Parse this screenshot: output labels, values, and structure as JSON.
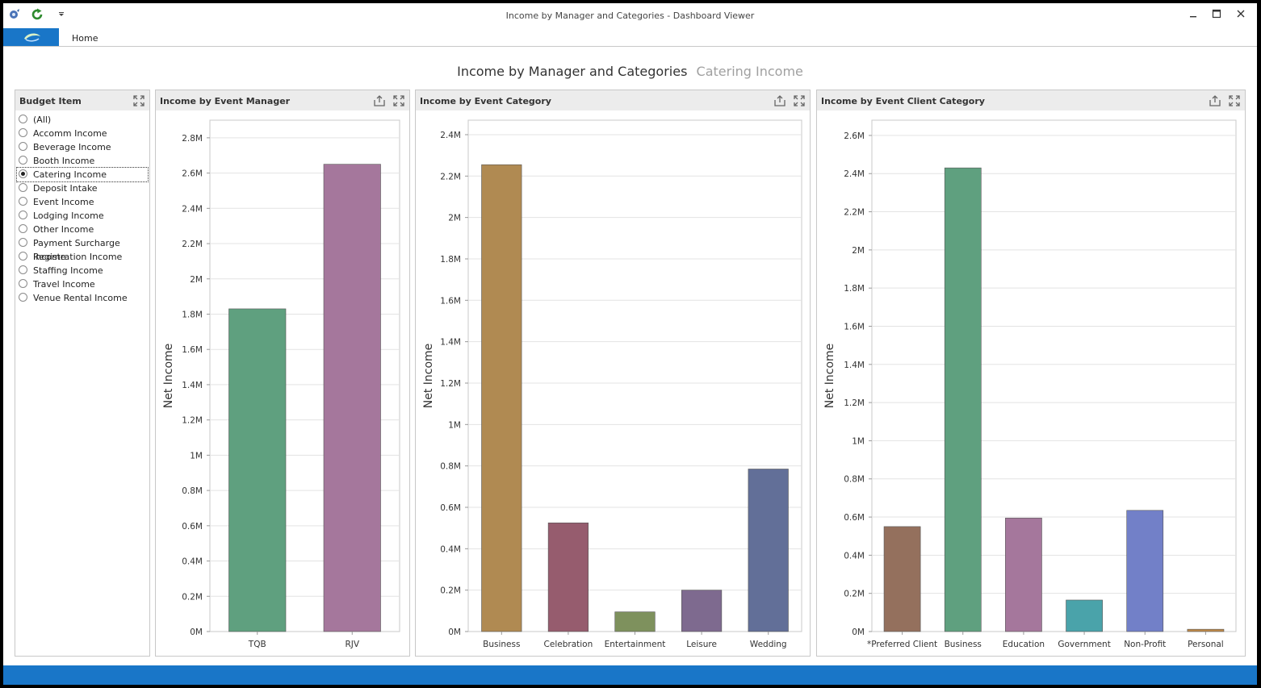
{
  "window": {
    "title": "Income by Manager and Categories - Dashboard Viewer",
    "minimize_icon": "minimize-icon",
    "maximize_icon": "maximize-icon",
    "close_icon": "close-icon"
  },
  "ribbon": {
    "home_tab": "Home"
  },
  "dashboard": {
    "title": "Income by Manager and Categories",
    "subtitle": "Catering Income"
  },
  "budget_item": {
    "title": "Budget Item",
    "selected": "Catering Income",
    "items": [
      "(All)",
      "Accomm Income",
      "Beverage Income",
      "Booth Income",
      "Catering Income",
      "Deposit Intake",
      "Event Income",
      "Lodging Income",
      "Other Income",
      "Payment Surcharge Income",
      "Registration Income",
      "Staffing Income",
      "Travel Income",
      "Venue Rental Income"
    ]
  },
  "chart_data": [
    {
      "panel_title": "Income by Event Manager",
      "type": "bar",
      "ylabel": "Net Income",
      "categories": [
        "TQB",
        "RJV"
      ],
      "values": [
        1830000,
        2650000
      ],
      "colors": [
        "#5fa07f",
        "#a5779c"
      ],
      "ylim": [
        0,
        2900000
      ],
      "ticks": [
        0,
        200000,
        400000,
        600000,
        800000,
        1000000,
        1200000,
        1400000,
        1600000,
        1800000,
        2000000,
        2200000,
        2400000,
        2600000,
        2800000
      ],
      "tick_labels": [
        "0M",
        "0.2M",
        "0.4M",
        "0.6M",
        "0.8M",
        "1M",
        "1.2M",
        "1.4M",
        "1.6M",
        "1.8M",
        "2M",
        "2.2M",
        "2.4M",
        "2.6M",
        "2.8M"
      ],
      "grid": true
    },
    {
      "panel_title": "Income by Event Category",
      "type": "bar",
      "ylabel": "Net Income",
      "categories": [
        "Business",
        "Celebration",
        "Entertainment",
        "Leisure",
        "Wedding"
      ],
      "values": [
        2255000,
        525000,
        95000,
        200000,
        785000
      ],
      "colors": [
        "#b08a52",
        "#965c6e",
        "#7e915d",
        "#7e6a8f",
        "#626f98"
      ],
      "ylim": [
        0,
        2470000
      ],
      "ticks": [
        0,
        200000,
        400000,
        600000,
        800000,
        1000000,
        1200000,
        1400000,
        1600000,
        1800000,
        2000000,
        2200000,
        2400000
      ],
      "tick_labels": [
        "0M",
        "0.2M",
        "0.4M",
        "0.6M",
        "0.8M",
        "1M",
        "1.2M",
        "1.4M",
        "1.6M",
        "1.8M",
        "2M",
        "2.2M",
        "2.4M"
      ],
      "grid": true
    },
    {
      "panel_title": "Income by Event Client Category",
      "type": "bar",
      "ylabel": "Net Income",
      "categories": [
        "*Preferred Client",
        "Business",
        "Education",
        "Government",
        "Non-Profit",
        "Personal"
      ],
      "values": [
        550000,
        2430000,
        595000,
        165000,
        635000,
        12000
      ],
      "colors": [
        "#94705d",
        "#5fa07f",
        "#a5779c",
        "#4aa3aa",
        "#7280c8",
        "#c08a48"
      ],
      "ylim": [
        0,
        2680000
      ],
      "ticks": [
        0,
        200000,
        400000,
        600000,
        800000,
        1000000,
        1200000,
        1400000,
        1600000,
        1800000,
        2000000,
        2200000,
        2400000,
        2600000
      ],
      "tick_labels": [
        "0M",
        "0.2M",
        "0.4M",
        "0.6M",
        "0.8M",
        "1M",
        "1.2M",
        "1.4M",
        "1.6M",
        "1.8M",
        "2M",
        "2.2M",
        "2.4M",
        "2.6M"
      ],
      "grid": true
    }
  ]
}
